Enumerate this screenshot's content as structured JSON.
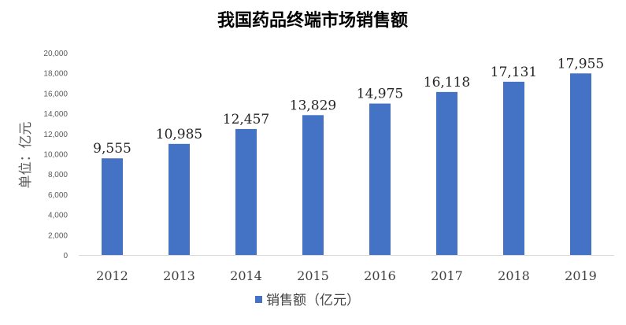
{
  "chart_data": {
    "type": "bar",
    "title": "我国药品终端市场销售额",
    "ylabel": "单位：亿元",
    "xlabel": "",
    "categories": [
      "2012",
      "2013",
      "2014",
      "2015",
      "2016",
      "2017",
      "2018",
      "2019"
    ],
    "series": [
      {
        "name": "销售额（亿元）",
        "values": [
          9555,
          10985,
          12457,
          13829,
          14975,
          16118,
          17131,
          17955
        ],
        "data_labels": [
          "9,555",
          "10,985",
          "12,457",
          "13,829",
          "14,975",
          "16,118",
          "17,131",
          "17,955"
        ],
        "color": "#4472c4"
      }
    ],
    "ylim": [
      0,
      20000
    ],
    "yticks": [
      0,
      2000,
      4000,
      6000,
      8000,
      10000,
      12000,
      14000,
      16000,
      18000,
      20000
    ],
    "ytick_labels": [
      "0",
      "2,000",
      "4,000",
      "6,000",
      "8,000",
      "10,000",
      "12,000",
      "14,000",
      "16,000",
      "18,000",
      "20,000"
    ],
    "grid": false,
    "legend_position": "bottom"
  }
}
